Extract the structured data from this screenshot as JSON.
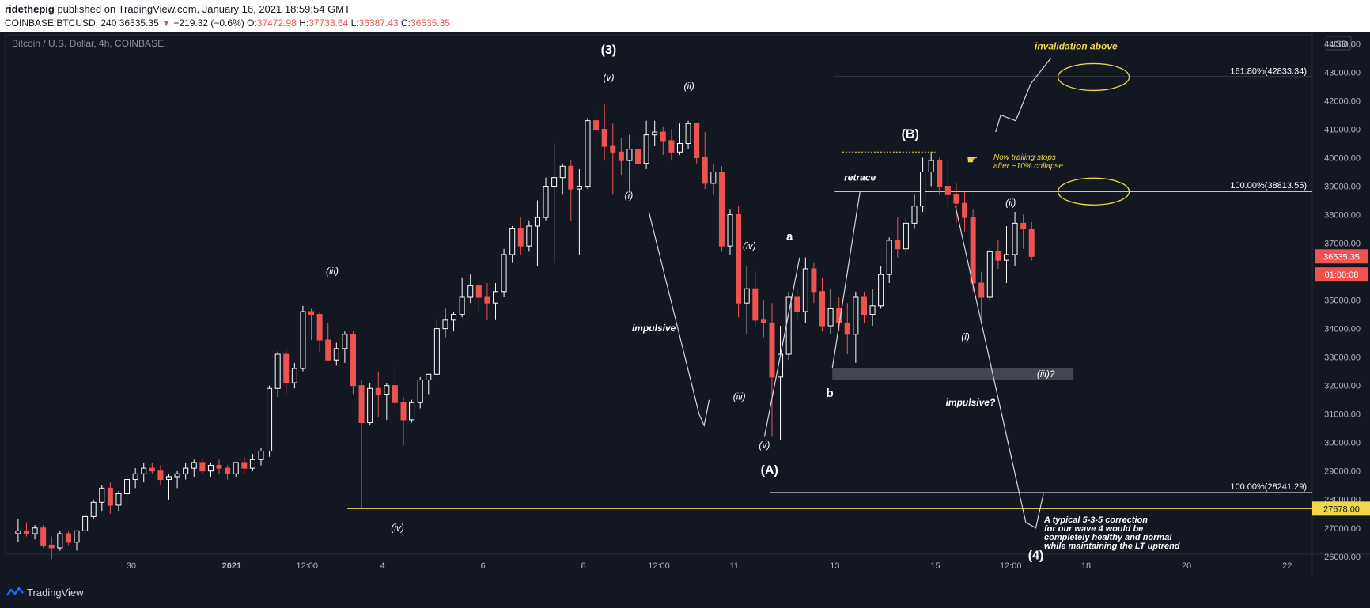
{
  "header": {
    "user": "ridethepig",
    "published": " published on TradingView.com, January 16, 2021 18:59:54 GMT",
    "symbol_line": "COINBASE:BTCUSD, 240",
    "last": "36535.35",
    "change_arrow": "▼",
    "change": "−219.32 (−0.6%)",
    "o_label": "O:",
    "o": "37472.98",
    "h_label": "H:",
    "h": "37733.64",
    "l_label": "L:",
    "l": "36387.43",
    "c_label": "C:",
    "c": "36535.35"
  },
  "footer": {
    "brand": "TradingView"
  },
  "colors": {
    "background": "#131722",
    "up": "#ffffff",
    "down": "#ef5350",
    "annotation_yellow": "#f0d74a",
    "text": "#d1d4dc",
    "grid_text": "#b2b5be"
  },
  "chart_data": {
    "type": "candlestick",
    "title": "Bitcoin / U.S. Dollar, 4h, COINBASE",
    "currency": "USD",
    "ylim": [
      25300,
      44400
    ],
    "x_range_days_since_dec28": [
      -0.5,
      25.5
    ],
    "y_ticks": [
      26000,
      27000,
      28000,
      29000,
      30000,
      31000,
      32000,
      33000,
      34000,
      35000,
      36000,
      37000,
      38000,
      39000,
      40000,
      41000,
      42000,
      43000,
      44000
    ],
    "x_ticks": [
      {
        "label": "30",
        "t": 2.0
      },
      {
        "label": "2021",
        "t": 4.0
      },
      {
        "label": "12:00",
        "t": 5.5
      },
      {
        "label": "4",
        "t": 7.0
      },
      {
        "label": "6",
        "t": 9.0
      },
      {
        "label": "8",
        "t": 11.0
      },
      {
        "label": "12:00",
        "t": 12.5
      },
      {
        "label": "11",
        "t": 14.0
      },
      {
        "label": "13",
        "t": 16.0
      },
      {
        "label": "15",
        "t": 18.0
      },
      {
        "label": "12:00",
        "t": 19.5
      },
      {
        "label": "18",
        "t": 21.0
      },
      {
        "label": "20",
        "t": 23.0
      },
      {
        "label": "22",
        "t": 25.0
      }
    ],
    "candles": [
      {
        "o": 26800,
        "h": 27300,
        "l": 26500,
        "c": 26900
      },
      {
        "o": 26900,
        "h": 27200,
        "l": 26700,
        "c": 26800
      },
      {
        "o": 26800,
        "h": 27100,
        "l": 26600,
        "c": 27000
      },
      {
        "o": 27000,
        "h": 27100,
        "l": 26300,
        "c": 26400
      },
      {
        "o": 26400,
        "h": 26700,
        "l": 25900,
        "c": 26300
      },
      {
        "o": 26300,
        "h": 26900,
        "l": 26200,
        "c": 26800
      },
      {
        "o": 26800,
        "h": 26900,
        "l": 26400,
        "c": 26500
      },
      {
        "o": 26500,
        "h": 26900,
        "l": 26200,
        "c": 26900
      },
      {
        "o": 26900,
        "h": 27500,
        "l": 26800,
        "c": 27400
      },
      {
        "o": 27400,
        "h": 28000,
        "l": 27300,
        "c": 27900
      },
      {
        "o": 27900,
        "h": 28500,
        "l": 27600,
        "c": 28400
      },
      {
        "o": 28400,
        "h": 28600,
        "l": 27500,
        "c": 27800
      },
      {
        "o": 27800,
        "h": 28300,
        "l": 27600,
        "c": 28200
      },
      {
        "o": 28200,
        "h": 28900,
        "l": 27900,
        "c": 28700
      },
      {
        "o": 28700,
        "h": 29100,
        "l": 28400,
        "c": 28900
      },
      {
        "o": 28900,
        "h": 29300,
        "l": 28600,
        "c": 29100
      },
      {
        "o": 29100,
        "h": 29300,
        "l": 28900,
        "c": 29000
      },
      {
        "o": 29000,
        "h": 29200,
        "l": 28500,
        "c": 28700
      },
      {
        "o": 28700,
        "h": 28900,
        "l": 28000,
        "c": 28800
      },
      {
        "o": 28800,
        "h": 29000,
        "l": 28400,
        "c": 28900
      },
      {
        "o": 28900,
        "h": 29300,
        "l": 28700,
        "c": 29100
      },
      {
        "o": 29100,
        "h": 29400,
        "l": 28800,
        "c": 29300
      },
      {
        "o": 29300,
        "h": 29400,
        "l": 28900,
        "c": 29000
      },
      {
        "o": 29000,
        "h": 29300,
        "l": 28800,
        "c": 29200
      },
      {
        "o": 29200,
        "h": 29400,
        "l": 28900,
        "c": 29100
      },
      {
        "o": 29100,
        "h": 29200,
        "l": 28700,
        "c": 28900
      },
      {
        "o": 28900,
        "h": 29300,
        "l": 28800,
        "c": 29300
      },
      {
        "o": 29300,
        "h": 29500,
        "l": 28900,
        "c": 29100
      },
      {
        "o": 29100,
        "h": 29600,
        "l": 29000,
        "c": 29400
      },
      {
        "o": 29400,
        "h": 29800,
        "l": 29200,
        "c": 29700
      },
      {
        "o": 29700,
        "h": 32000,
        "l": 29500,
        "c": 31900
      },
      {
        "o": 31900,
        "h": 33200,
        "l": 31600,
        "c": 33100
      },
      {
        "o": 33100,
        "h": 33300,
        "l": 31700,
        "c": 32100
      },
      {
        "o": 32100,
        "h": 32800,
        "l": 31900,
        "c": 32600
      },
      {
        "o": 32600,
        "h": 34800,
        "l": 32500,
        "c": 34600
      },
      {
        "o": 34600,
        "h": 34700,
        "l": 33600,
        "c": 34500
      },
      {
        "o": 34500,
        "h": 34600,
        "l": 33200,
        "c": 33600
      },
      {
        "o": 33600,
        "h": 34200,
        "l": 32900,
        "c": 32900
      },
      {
        "o": 32900,
        "h": 33500,
        "l": 32700,
        "c": 33300
      },
      {
        "o": 33300,
        "h": 33900,
        "l": 32800,
        "c": 33800
      },
      {
        "o": 33800,
        "h": 33900,
        "l": 31700,
        "c": 32000
      },
      {
        "o": 32000,
        "h": 32200,
        "l": 27700,
        "c": 30700
      },
      {
        "o": 30700,
        "h": 32100,
        "l": 30600,
        "c": 31900
      },
      {
        "o": 31900,
        "h": 32500,
        "l": 30900,
        "c": 31700
      },
      {
        "o": 31700,
        "h": 32100,
        "l": 30800,
        "c": 32000
      },
      {
        "o": 32000,
        "h": 32700,
        "l": 31100,
        "c": 31400
      },
      {
        "o": 31400,
        "h": 31600,
        "l": 29900,
        "c": 30800
      },
      {
        "o": 30800,
        "h": 31500,
        "l": 30700,
        "c": 31400
      },
      {
        "o": 31400,
        "h": 32300,
        "l": 31200,
        "c": 32200
      },
      {
        "o": 32200,
        "h": 32400,
        "l": 31700,
        "c": 32400
      },
      {
        "o": 32400,
        "h": 34300,
        "l": 32300,
        "c": 34000
      },
      {
        "o": 34000,
        "h": 34700,
        "l": 33700,
        "c": 34300
      },
      {
        "o": 34300,
        "h": 34600,
        "l": 33900,
        "c": 34500
      },
      {
        "o": 34500,
        "h": 35800,
        "l": 34400,
        "c": 35100
      },
      {
        "o": 35100,
        "h": 35900,
        "l": 34900,
        "c": 35500
      },
      {
        "o": 35500,
        "h": 35600,
        "l": 34600,
        "c": 35100
      },
      {
        "o": 35100,
        "h": 35600,
        "l": 34300,
        "c": 34900
      },
      {
        "o": 34900,
        "h": 35600,
        "l": 34300,
        "c": 35300
      },
      {
        "o": 35300,
        "h": 36800,
        "l": 35100,
        "c": 36600
      },
      {
        "o": 36600,
        "h": 37600,
        "l": 36300,
        "c": 37500
      },
      {
        "o": 37500,
        "h": 37900,
        "l": 36600,
        "c": 36900
      },
      {
        "o": 36900,
        "h": 37800,
        "l": 36700,
        "c": 37600
      },
      {
        "o": 37600,
        "h": 38500,
        "l": 36200,
        "c": 37900
      },
      {
        "o": 37900,
        "h": 39300,
        "l": 37800,
        "c": 39000
      },
      {
        "o": 39000,
        "h": 40500,
        "l": 36300,
        "c": 39300
      },
      {
        "o": 39300,
        "h": 39800,
        "l": 38700,
        "c": 39700
      },
      {
        "o": 39700,
        "h": 39900,
        "l": 37800,
        "c": 38900
      },
      {
        "o": 38900,
        "h": 39600,
        "l": 36600,
        "c": 39000
      },
      {
        "o": 39000,
        "h": 41400,
        "l": 38900,
        "c": 41300
      },
      {
        "o": 41300,
        "h": 41600,
        "l": 40200,
        "c": 41000
      },
      {
        "o": 41000,
        "h": 41900,
        "l": 39900,
        "c": 40400
      },
      {
        "o": 40400,
        "h": 41200,
        "l": 38700,
        "c": 40200
      },
      {
        "o": 40200,
        "h": 40700,
        "l": 39400,
        "c": 39900
      },
      {
        "o": 39900,
        "h": 40800,
        "l": 38800,
        "c": 40300
      },
      {
        "o": 40300,
        "h": 40600,
        "l": 39200,
        "c": 39800
      },
      {
        "o": 39800,
        "h": 41300,
        "l": 39600,
        "c": 40800
      },
      {
        "o": 40800,
        "h": 41300,
        "l": 40400,
        "c": 40900
      },
      {
        "o": 40900,
        "h": 41100,
        "l": 40100,
        "c": 40600
      },
      {
        "o": 40600,
        "h": 41000,
        "l": 39900,
        "c": 40200
      },
      {
        "o": 40200,
        "h": 41200,
        "l": 40100,
        "c": 40500
      },
      {
        "o": 40500,
        "h": 41300,
        "l": 40300,
        "c": 41200
      },
      {
        "o": 41200,
        "h": 41200,
        "l": 39800,
        "c": 40000
      },
      {
        "o": 40000,
        "h": 40900,
        "l": 38900,
        "c": 39100
      },
      {
        "o": 39100,
        "h": 39800,
        "l": 38700,
        "c": 39500
      },
      {
        "o": 39500,
        "h": 39700,
        "l": 36700,
        "c": 36900
      },
      {
        "o": 36900,
        "h": 38200,
        "l": 36600,
        "c": 38000
      },
      {
        "o": 38000,
        "h": 38300,
        "l": 34400,
        "c": 34900
      },
      {
        "o": 34900,
        "h": 36200,
        "l": 33800,
        "c": 35400
      },
      {
        "o": 35400,
        "h": 36000,
        "l": 34100,
        "c": 34300
      },
      {
        "o": 34300,
        "h": 35000,
        "l": 33700,
        "c": 34200
      },
      {
        "o": 34200,
        "h": 34900,
        "l": 30200,
        "c": 32300
      },
      {
        "o": 32300,
        "h": 34100,
        "l": 30100,
        "c": 33100
      },
      {
        "o": 33100,
        "h": 35300,
        "l": 32900,
        "c": 35100
      },
      {
        "o": 35100,
        "h": 35400,
        "l": 34300,
        "c": 34600
      },
      {
        "o": 34600,
        "h": 36500,
        "l": 34200,
        "c": 36100
      },
      {
        "o": 36100,
        "h": 36300,
        "l": 34900,
        "c": 35300
      },
      {
        "o": 35300,
        "h": 35800,
        "l": 33900,
        "c": 34100
      },
      {
        "o": 34100,
        "h": 35400,
        "l": 33800,
        "c": 34700
      },
      {
        "o": 34700,
        "h": 35100,
        "l": 33900,
        "c": 34200
      },
      {
        "o": 34200,
        "h": 34900,
        "l": 33100,
        "c": 33800
      },
      {
        "o": 33800,
        "h": 35300,
        "l": 32800,
        "c": 35100
      },
      {
        "o": 35100,
        "h": 35300,
        "l": 34200,
        "c": 34500
      },
      {
        "o": 34500,
        "h": 35400,
        "l": 34100,
        "c": 34800
      },
      {
        "o": 34800,
        "h": 36200,
        "l": 34700,
        "c": 35900
      },
      {
        "o": 35900,
        "h": 37200,
        "l": 35600,
        "c": 37100
      },
      {
        "o": 37100,
        "h": 37900,
        "l": 36500,
        "c": 36800
      },
      {
        "o": 36800,
        "h": 37900,
        "l": 36600,
        "c": 37700
      },
      {
        "o": 37700,
        "h": 38700,
        "l": 37500,
        "c": 38300
      },
      {
        "o": 38300,
        "h": 40000,
        "l": 38100,
        "c": 39500
      },
      {
        "o": 39500,
        "h": 40200,
        "l": 39000,
        "c": 39900
      },
      {
        "o": 39900,
        "h": 40000,
        "l": 38700,
        "c": 39000
      },
      {
        "o": 39000,
        "h": 39900,
        "l": 38300,
        "c": 38700
      },
      {
        "o": 38700,
        "h": 39100,
        "l": 37700,
        "c": 38400
      },
      {
        "o": 38400,
        "h": 38800,
        "l": 37400,
        "c": 37900
      },
      {
        "o": 37900,
        "h": 38200,
        "l": 35300,
        "c": 35600
      },
      {
        "o": 35600,
        "h": 36000,
        "l": 34300,
        "c": 35100
      },
      {
        "o": 35100,
        "h": 36800,
        "l": 35000,
        "c": 36700
      },
      {
        "o": 36700,
        "h": 37100,
        "l": 36100,
        "c": 36400
      },
      {
        "o": 36400,
        "h": 37600,
        "l": 35600,
        "c": 36600
      },
      {
        "o": 36600,
        "h": 38100,
        "l": 36200,
        "c": 37700
      },
      {
        "o": 37700,
        "h": 38000,
        "l": 36800,
        "c": 37500
      },
      {
        "o": 37473,
        "h": 37734,
        "l": 36387,
        "c": 36535
      }
    ],
    "hlines": [
      {
        "price": 42833.34,
        "label": "161.80%(42833.34)",
        "t0": 16.0,
        "color": "#ffffff"
      },
      {
        "price": 38813.55,
        "label": "100.00%(38813.55)",
        "t0": 16.0,
        "color": "#ffffff"
      },
      {
        "price": 28241.29,
        "label": "100.00%(28241.29)",
        "t0": 14.7,
        "color": "#ffffff"
      },
      {
        "price": 27678.0,
        "label": "27678.00",
        "t0": 6.3,
        "color": "#f0d74a"
      }
    ],
    "price_badges": [
      {
        "price": 36535.35,
        "label": "36535.35"
      },
      {
        "price": 35900,
        "label": "01:00:08"
      }
    ],
    "annotations": [
      {
        "text": "(3)",
        "t": 11.5,
        "p": 43650,
        "style": "big"
      },
      {
        "text": "(v)",
        "t": 11.5,
        "p": 42700,
        "style": "italic"
      },
      {
        "text": "(ii)",
        "t": 13.1,
        "p": 42400,
        "style": "italic"
      },
      {
        "text": "(i)",
        "t": 11.9,
        "p": 38550,
        "style": "italic"
      },
      {
        "text": "(iii)",
        "t": 6.0,
        "p": 35900,
        "style": "italic"
      },
      {
        "text": "(iv)",
        "t": 7.3,
        "p": 26900,
        "style": "italic"
      },
      {
        "text": "impulsive",
        "t": 12.4,
        "p": 33900,
        "style": "bolditalic"
      },
      {
        "text": "(iv)",
        "t": 14.3,
        "p": 36800,
        "style": "italic"
      },
      {
        "text": "(iii)",
        "t": 14.1,
        "p": 31500,
        "style": "italic"
      },
      {
        "text": "(v)",
        "t": 14.6,
        "p": 29800,
        "style": "italic"
      },
      {
        "text": "(A)",
        "t": 14.7,
        "p": 28900,
        "style": "big"
      },
      {
        "text": "a",
        "t": 15.1,
        "p": 37100,
        "style": "bold"
      },
      {
        "text": "b",
        "t": 15.9,
        "p": 31600,
        "style": "bold"
      },
      {
        "text": "retrace",
        "t": 16.5,
        "p": 39200,
        "style": "bolditalic"
      },
      {
        "text": "(B)",
        "t": 17.5,
        "p": 40700,
        "style": "big"
      },
      {
        "text": "(ii)",
        "t": 19.5,
        "p": 38300,
        "style": "italic"
      },
      {
        "text": "(i)",
        "t": 18.6,
        "p": 33600,
        "style": "italic"
      },
      {
        "text": "(iii)?",
        "t": 20.2,
        "p": 32300,
        "style": "italic"
      },
      {
        "text": "impulsive?",
        "t": 18.7,
        "p": 31300,
        "style": "bolditalic"
      },
      {
        "text": "(4)",
        "t": 20.0,
        "p": 25900,
        "style": "big"
      },
      {
        "text": "invalidation above",
        "t": 20.8,
        "p": 43800,
        "style": "yellowbold"
      }
    ],
    "note_trailing": [
      "Now trailing stops",
      "after ~10% collapse"
    ],
    "note_bottom": [
      "A typical 5-3-5 correction",
      "for our wave 4 would be",
      "completely healthy and normal",
      "while maintaining the LT uptrend"
    ],
    "wave_lines": [
      [
        [
          12.3,
          38100
        ],
        [
          13.3,
          31000
        ],
        [
          13.4,
          30600
        ],
        [
          13.5,
          31500
        ]
      ],
      [
        [
          14.6,
          30200
        ],
        [
          15.3,
          36500
        ]
      ],
      [
        [
          15.95,
          32600
        ],
        [
          16.5,
          38800
        ]
      ],
      [
        [
          18.4,
          38300
        ],
        [
          19.8,
          27200
        ],
        [
          20.0,
          27000
        ],
        [
          20.15,
          28200
        ]
      ],
      [
        [
          19.2,
          40900
        ],
        [
          19.3,
          41500
        ],
        [
          19.6,
          41300
        ],
        [
          19.9,
          42600
        ],
        [
          20.3,
          43500
        ]
      ]
    ],
    "shaded_zone": {
      "p_top": 32600,
      "p_bottom": 32200,
      "t0": 15.95,
      "t1": 20.75
    },
    "trailing_dotted": {
      "price": 40200,
      "t0": 16.15,
      "t1": 18.0
    },
    "ellipses": [
      {
        "t": 21.15,
        "p": 42833.34,
        "rx": 45,
        "ry": 17
      },
      {
        "t": 21.15,
        "p": 38813.55,
        "rx": 45,
        "ry": 17
      }
    ]
  }
}
